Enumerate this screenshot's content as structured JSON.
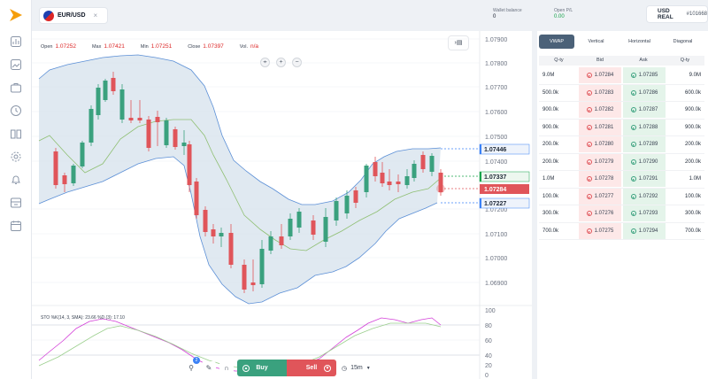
{
  "app": {
    "brand_color": "#f59e0b",
    "accent": "#4b6178"
  },
  "sidebar": {
    "icons": [
      "chart-bar-icon",
      "image-icon",
      "briefcase-icon",
      "clock-icon",
      "book-icon",
      "gear-icon",
      "bell-icon",
      "storefront-icon",
      "calendar-icon"
    ]
  },
  "header": {
    "pair": "EUR/USD",
    "close_symbol": "×",
    "wallet_label": "Wallet balance",
    "wallet_value": "0",
    "openpl_label": "Open P/L",
    "openpl_value": "0.00",
    "currency": "USD REAL",
    "account_id": "#101668"
  },
  "ohlc": {
    "open_label": "Open",
    "open_value": "1.07252",
    "max_label": "Max",
    "max_value": "1.07421",
    "min_label": "Min",
    "min_value": "1.07251",
    "close_label": "Close",
    "close_value": "1.07397",
    "vol_label": "Vol.",
    "vol_value": "n/a"
  },
  "price_axis": {
    "ticks": [
      "1.07900",
      "1.07800",
      "1.07700",
      "1.07600",
      "1.07500",
      "1.07400",
      "1.07200",
      "1.07100",
      "1.07000",
      "1.06900"
    ],
    "markers": [
      {
        "label": "1.07446",
        "color": "#3b82f6"
      },
      {
        "label": "1.07337",
        "color": "#16a34a"
      },
      {
        "label": "1.07284",
        "color": "#e0555a"
      },
      {
        "label": "1.07227",
        "color": "#3b82f6"
      }
    ]
  },
  "stoch": {
    "label": "STO %K(14, 3, SMA): 23.66 %D (3): 17.10",
    "ticks": [
      "100",
      "80",
      "60",
      "40",
      "20",
      "0"
    ]
  },
  "trade_bar": {
    "badge": "2",
    "buy_label": "Buy",
    "sell_label": "Sell",
    "timeframe": "15m"
  },
  "orderbook": {
    "tabs": [
      "VWAP",
      "Vertical",
      "Horizontal",
      "Diagonal"
    ],
    "headers": [
      "Q-ty",
      "Bid",
      "Ask",
      "Q-ty"
    ],
    "rows": [
      {
        "qty_bid": "9.0M",
        "bid": "1.07284",
        "ask": "1.07285",
        "qty_ask": "9.0M"
      },
      {
        "qty_bid": "500.0k",
        "bid": "1.07283",
        "ask": "1.07286",
        "qty_ask": "600.0k"
      },
      {
        "qty_bid": "900.0k",
        "bid": "1.07282",
        "ask": "1.07287",
        "qty_ask": "900.0k"
      },
      {
        "qty_bid": "900.0k",
        "bid": "1.07281",
        "ask": "1.07288",
        "qty_ask": "900.0k"
      },
      {
        "qty_bid": "200.0k",
        "bid": "1.07280",
        "ask": "1.07289",
        "qty_ask": "200.0k"
      },
      {
        "qty_bid": "200.0k",
        "bid": "1.07279",
        "ask": "1.07290",
        "qty_ask": "200.0k"
      },
      {
        "qty_bid": "1.0M",
        "bid": "1.07278",
        "ask": "1.07291",
        "qty_ask": "1.0M"
      },
      {
        "qty_bid": "100.0k",
        "bid": "1.07277",
        "ask": "1.07292",
        "qty_ask": "100.0k"
      },
      {
        "qty_bid": "300.0k",
        "bid": "1.07276",
        "ask": "1.07293",
        "qty_ask": "300.0k"
      },
      {
        "qty_bid": "700.0k",
        "bid": "1.07275",
        "ask": "1.07294",
        "qty_ask": "700.0k"
      }
    ]
  }
}
